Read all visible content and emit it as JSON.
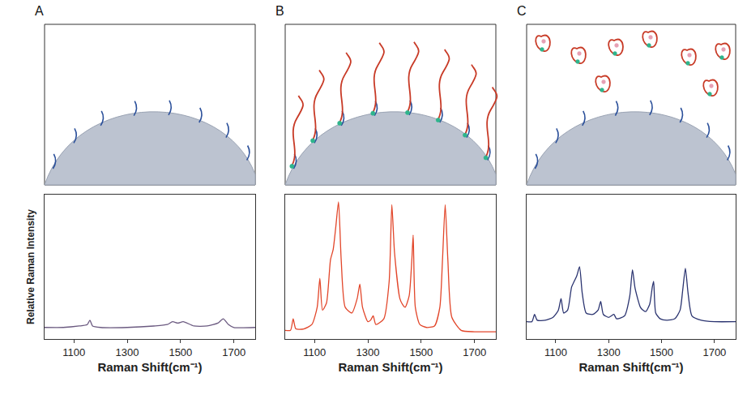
{
  "chart_data": [
    {
      "panel": "A",
      "type": "line",
      "x_label": "Raman Shift(cm⁻¹)",
      "y_label": "Relative Raman Intensity",
      "x": [
        990,
        1060,
        1120,
        1150,
        1160,
        1170,
        1200,
        1300,
        1400,
        1450,
        1470,
        1490,
        1510,
        1550,
        1600,
        1640,
        1660,
        1680,
        1700,
        1780
      ],
      "series": [
        {
          "color": "#6b5a80",
          "values": [
            8,
            8,
            9,
            10,
            13,
            9,
            8,
            8,
            9,
            10,
            12,
            11,
            12,
            9,
            9,
            11,
            14,
            10,
            8,
            8
          ]
        }
      ],
      "xlim": [
        990,
        1780
      ],
      "xticks": [
        1100,
        1300,
        1500,
        1700
      ],
      "ylim": [
        0,
        100
      ],
      "tick_labels": "x"
    },
    {
      "panel": "B",
      "type": "line",
      "x_label": "Raman Shift(cm⁻¹)",
      "x": [
        990,
        1010,
        1020,
        1030,
        1060,
        1090,
        1110,
        1120,
        1130,
        1145,
        1160,
        1170,
        1180,
        1190,
        1200,
        1215,
        1240,
        1260,
        1270,
        1280,
        1300,
        1310,
        1320,
        1330,
        1360,
        1380,
        1390,
        1400,
        1420,
        1430,
        1440,
        1455,
        1465,
        1470,
        1478,
        1495,
        1520,
        1550,
        1570,
        1580,
        1590,
        1600,
        1615,
        1650,
        1700,
        1780
      ],
      "series": [
        {
          "color": "#e2462a",
          "values": [
            6,
            6,
            14,
            7,
            7,
            10,
            22,
            42,
            20,
            25,
            55,
            62,
            78,
            95,
            55,
            22,
            18,
            28,
            38,
            22,
            12,
            13,
            16,
            10,
            14,
            40,
            93,
            60,
            28,
            24,
            22,
            30,
            55,
            72,
            22,
            10,
            8,
            9,
            22,
            55,
            93,
            55,
            15,
            6,
            5,
            5
          ]
        }
      ],
      "xlim": [
        990,
        1780
      ],
      "xticks": [
        1100,
        1300,
        1500,
        1700
      ],
      "ylim": [
        0,
        100
      ],
      "tick_labels": "x"
    },
    {
      "panel": "C",
      "type": "line",
      "x_label": "Raman Shift(cm⁻¹)",
      "x": [
        990,
        1010,
        1020,
        1030,
        1060,
        1090,
        1110,
        1120,
        1130,
        1145,
        1160,
        1170,
        1180,
        1190,
        1200,
        1215,
        1240,
        1260,
        1270,
        1280,
        1300,
        1310,
        1320,
        1330,
        1360,
        1380,
        1390,
        1400,
        1420,
        1430,
        1440,
        1455,
        1465,
        1470,
        1478,
        1495,
        1520,
        1550,
        1570,
        1580,
        1590,
        1600,
        1615,
        1650,
        1700,
        1780
      ],
      "series": [
        {
          "color": "#2b3470",
          "values": [
            12,
            12,
            17,
            13,
            13,
            15,
            20,
            28,
            18,
            20,
            36,
            40,
            44,
            50,
            32,
            18,
            17,
            20,
            26,
            17,
            15,
            16,
            17,
            14,
            16,
            30,
            48,
            35,
            22,
            20,
            19,
            24,
            36,
            40,
            18,
            14,
            13,
            14,
            20,
            34,
            49,
            32,
            16,
            13,
            12,
            12
          ]
        }
      ],
      "xlim": [
        990,
        1780
      ],
      "xticks": [
        1100,
        1300,
        1500,
        1700
      ],
      "ylim": [
        0,
        100
      ],
      "tick_labels": "x"
    }
  ]
}
